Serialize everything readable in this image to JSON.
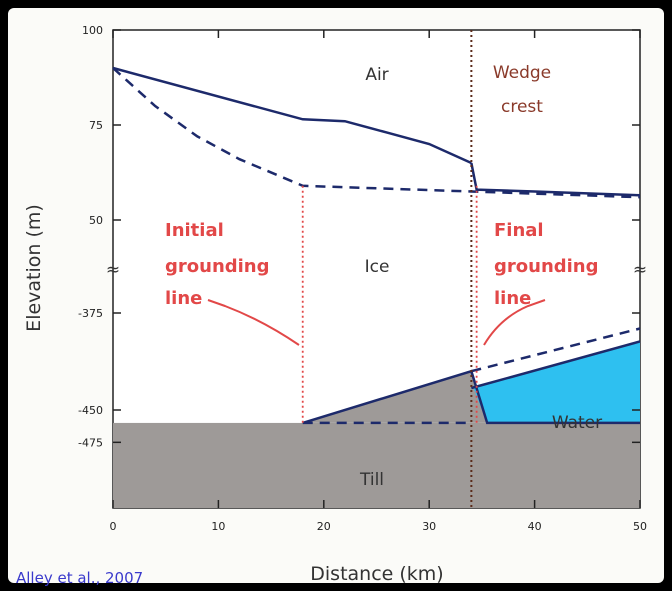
{
  "chart_data": {
    "type": "line",
    "xlabel": "Distance (km)",
    "ylabel": "Elevation (m)",
    "xlim": [
      0,
      50
    ],
    "x_ticks": [
      0,
      10,
      20,
      30,
      40,
      50
    ],
    "y_ticks": [
      "100",
      "75",
      "50",
      "-375",
      "-450",
      "-475"
    ],
    "axis_break_symbol": "≈",
    "y_axis_note": "broken axis: 50 to 100 m shown above the break, -475 to -375 m shown below",
    "series": [
      {
        "style": "solid",
        "x": [
          0,
          18,
          22,
          26,
          30,
          34
        ],
        "y": [
          90,
          76.5,
          76,
          73,
          70,
          65
        ]
      },
      {
        "style": "solid",
        "x": [
          34,
          34.5,
          40,
          50
        ],
        "y": [
          65,
          58,
          57.5,
          56.5
        ]
      },
      {
        "style": "dashed",
        "x": [
          0,
          4,
          8,
          12,
          18,
          34,
          50
        ],
        "y": [
          90,
          80,
          72,
          66,
          59,
          57.5,
          56
        ]
      },
      {
        "style": "solid",
        "x": [
          18,
          34,
          35.5,
          50
        ],
        "y": [
          -460,
          -420,
          -460,
          -460
        ]
      },
      {
        "style": "solid",
        "x": [
          34,
          50
        ],
        "y": [
          -433,
          -397
        ]
      },
      {
        "style": "dashed",
        "x": [
          34,
          50
        ],
        "y": [
          -420,
          -387
        ]
      },
      {
        "style": "dashed",
        "x": [
          18,
          34
        ],
        "y": [
          -460,
          -460
        ]
      }
    ],
    "vertical_lines": [
      {
        "name": "Initial grounding line",
        "x": 18,
        "style": "dotted"
      },
      {
        "name": "Final grounding line",
        "x": 34.5,
        "style": "dotted"
      },
      {
        "name": "Wedge crest",
        "x": 34,
        "style": "dotted"
      }
    ],
    "annotations": {
      "air": "Air",
      "ice": "Ice",
      "water": "Water",
      "till": "Till",
      "wedge_crest_line1": "Wedge",
      "wedge_crest_line2": "crest",
      "initial_line1": "Initial",
      "initial_line2": "grounding",
      "initial_line3": "line",
      "final_line1": "Final",
      "final_line2": "grounding",
      "final_line3": "line"
    },
    "citation": "Alley et al., 2007",
    "colors": {
      "surface": "#1d2a6b",
      "grounding": "#e24848",
      "crest": "#5a2a1a",
      "water": "#2ec0f0",
      "till": "#9e9a98",
      "wedge": "#9e9a98",
      "ice": "#ffffff"
    }
  }
}
